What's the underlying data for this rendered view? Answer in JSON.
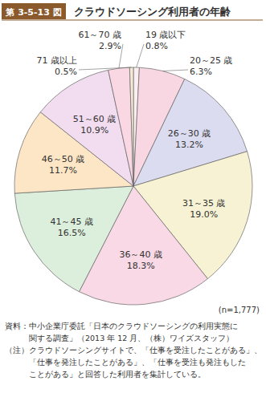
{
  "chart_data": {
    "type": "pie",
    "figure_number": "第 3-5-13 図",
    "title": "クラウドソーシング利用者の年齢",
    "categories": [
      "19 歳以下",
      "20～25 歳",
      "26～30 歳",
      "31～35 歳",
      "36～40 歳",
      "41～45 歳",
      "46～50 歳",
      "51～60 歳",
      "61～70 歳",
      "71 歳以上"
    ],
    "values": [
      0.8,
      6.3,
      13.2,
      19.0,
      18.3,
      16.5,
      11.7,
      10.9,
      2.9,
      0.5
    ],
    "value_labels": [
      "0.8%",
      "6.3%",
      "13.2%",
      "19.0%",
      "18.3%",
      "16.5%",
      "11.7%",
      "10.9%",
      "2.9%",
      "0.5%"
    ],
    "colors": [
      "#fbeef0",
      "#f8d6e2",
      "#dcdcf0",
      "#f7f2d4",
      "#f9d9e5",
      "#dcefdc",
      "#fde6c6",
      "#f2dcef",
      "#f9d8e3",
      "#f4ead6"
    ],
    "data_labels": true,
    "sample_size": "(n=1,777)",
    "source": [
      "資料：中小企業庁委託「日本のクラウドソーシングの利用実態に",
      "　　　関する調査」（2013 年 12 月、（株）ワイズスタッフ）",
      "（注）クラウドソーシングサイトで、「仕事を受注したことがある」、",
      "　　　「仕事を発注したことがある」、「仕事を受注も発注もした",
      "　　　ことがある」と回答した利用者を集計している。"
    ]
  }
}
